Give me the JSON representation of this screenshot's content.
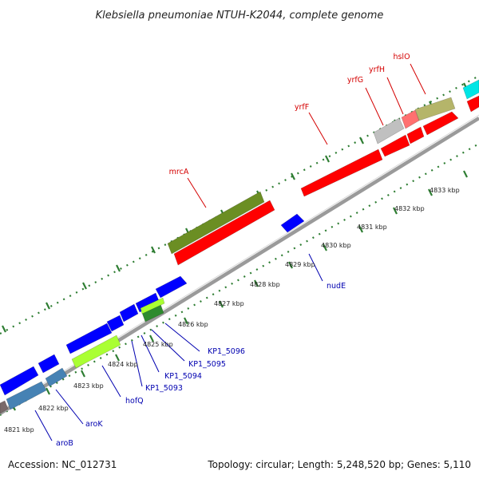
{
  "header": {
    "title": "Klebsiella pneumoniae NTUH-K2044, complete genome"
  },
  "footer": {
    "accession": "Accession: NC_012731",
    "summary": "Topology: circular; Length: 5,248,520 bp; Genes: 5,110"
  },
  "colors": {
    "backbone": "#999999",
    "tick": "#2e7d32",
    "label_top": "#d40000",
    "label_bottom": "#0000b0",
    "label_line_top": "#d40000",
    "label_line_bottom": "#0000b0"
  },
  "ticks": [
    {
      "label": "4821 kbp"
    },
    {
      "label": "4822 kbp"
    },
    {
      "label": "4823 kbp"
    },
    {
      "label": "4824 kbp"
    },
    {
      "label": "4825 kbp"
    },
    {
      "label": "4826 kbp"
    },
    {
      "label": "4827 kbp"
    },
    {
      "label": "4828 kbp"
    },
    {
      "label": "4829 kbp"
    },
    {
      "label": "4830 kbp"
    },
    {
      "label": "4831 kbp"
    },
    {
      "label": "4832 kbp"
    },
    {
      "label": "4833 kbp"
    }
  ],
  "genes_top": [
    {
      "name": "mrcA",
      "color": "#6b8e23"
    },
    {
      "name": "yrfF",
      "color": "#ff0000"
    },
    {
      "name": "yrfG",
      "color": "#c0c0c0"
    },
    {
      "name": "yrfH",
      "color": "#ff7070"
    },
    {
      "name": "hslO",
      "color": "#b5b56a"
    }
  ],
  "genes_bottom": [
    {
      "name": "nudE",
      "color": "#0000ff"
    },
    {
      "name": "KP1_5096",
      "color": "#2e8b2e"
    },
    {
      "name": "KP1_5095",
      "color": "#0000ff"
    },
    {
      "name": "KP1_5094",
      "color": "#0000ff"
    },
    {
      "name": "KP1_5093",
      "color": "#0000ff"
    },
    {
      "name": "hofQ",
      "color": "#aaff33"
    },
    {
      "name": "aroK",
      "color": "#4682b4"
    },
    {
      "name": "aroB",
      "color": "#4682b4"
    }
  ]
}
